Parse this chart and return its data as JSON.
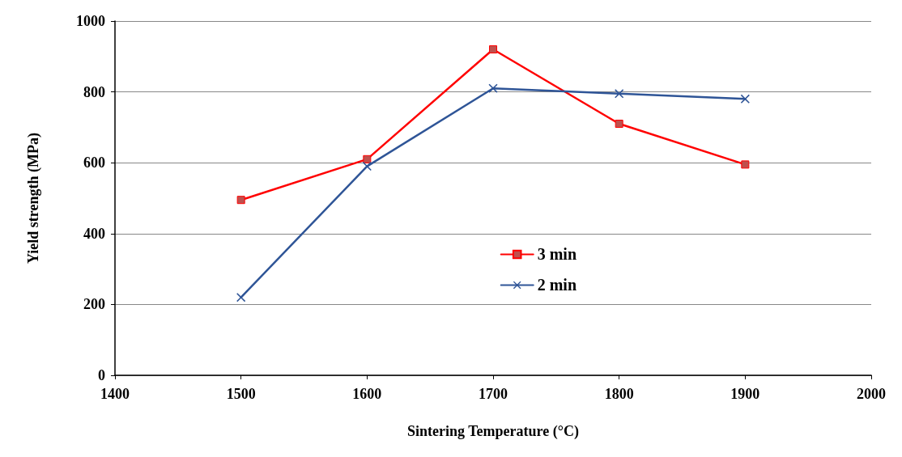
{
  "chart_data": {
    "type": "line",
    "xlabel": "Sintering Temperature (°C)",
    "ylabel": "Yield strength (MPa)",
    "x": [
      1500,
      1600,
      1700,
      1800,
      1900
    ],
    "series": [
      {
        "name": "3 min",
        "color": "#ff0000",
        "marker": "square",
        "values": [
          495,
          610,
          920,
          710,
          595
        ]
      },
      {
        "name": "2 min",
        "color": "#2f5597",
        "marker": "cross",
        "values": [
          220,
          590,
          810,
          795,
          780
        ]
      }
    ],
    "xlim": [
      1400,
      2000
    ],
    "xticks": [
      1400,
      1500,
      1600,
      1700,
      1800,
      1900,
      2000
    ],
    "ylim": [
      0,
      1000
    ],
    "yticks": [
      0,
      200,
      400,
      600,
      800,
      1000
    ],
    "grid": "y",
    "legend": "center",
    "line_style": "solid"
  }
}
